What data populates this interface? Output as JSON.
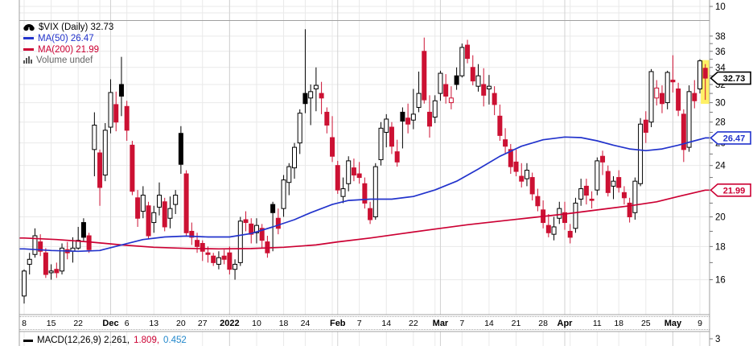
{
  "app": {
    "kind": "stockcharts-daily-chart"
  },
  "colors": {
    "up_outline": "#000000",
    "down_red": "#cc1133",
    "ma50_blue": "#2233cc",
    "ma200_red": "#cc0033",
    "macd_signal_blue": "#2288cc",
    "grid": "#e9e9e9",
    "grid_month": "#d2d2d2",
    "pane_border": "#a0a0a0",
    "highlight_yellow": "#fff066",
    "volume_text_gray": "#666666"
  },
  "legend": {
    "symbol_title": "$VIX (Daily) 32.73",
    "ma50_label": "MA(50) 26.47",
    "ma200_label": "MA(200) 21.99",
    "volume_label": "Volume undef"
  },
  "upper_pane": {
    "axis_label": "10"
  },
  "macd_pane": {
    "legend_black": "MACD(12,26,9) 2.261,",
    "legend_red": "1.809,",
    "legend_blue": "0.452",
    "axis_label": "3"
  },
  "price_tags": [
    {
      "name": "last",
      "value": "32.73",
      "price": 32.73,
      "color": "#000000"
    },
    {
      "name": "ma50",
      "value": "26.47",
      "price": 26.47,
      "color": "#2233cc"
    },
    {
      "name": "ma200",
      "value": "21.99",
      "price": 21.99,
      "color": "#cc0033"
    }
  ],
  "chart_data": {
    "type": "candlestick",
    "title": "$VIX (Daily) 32.73",
    "symbol": "$VIX",
    "timeframe": "Daily",
    "last_close": 32.73,
    "first_candle_date": "2021-11-08",
    "last_candle_date": "2022-05-10",
    "y_axis": {
      "scale": "log",
      "tick_step_labeled": 2,
      "ticks": [
        16,
        18,
        20,
        22,
        24,
        26,
        28,
        30,
        32,
        34,
        36,
        38
      ],
      "ylim": [
        14.2,
        39.5
      ]
    },
    "x_labels": [
      {
        "i": 0,
        "t": "8",
        "bold": false
      },
      {
        "i": 5,
        "t": "15",
        "bold": false
      },
      {
        "i": 10,
        "t": "22",
        "bold": false
      },
      {
        "i": 16,
        "t": "Dec",
        "bold": true
      },
      {
        "i": 19,
        "t": "6",
        "bold": false
      },
      {
        "i": 24,
        "t": "13",
        "bold": false
      },
      {
        "i": 29,
        "t": "20",
        "bold": false
      },
      {
        "i": 33,
        "t": "27",
        "bold": false
      },
      {
        "i": 38,
        "t": "2022",
        "bold": true
      },
      {
        "i": 43,
        "t": "10",
        "bold": false
      },
      {
        "i": 48,
        "t": "18",
        "bold": false
      },
      {
        "i": 52,
        "t": "24",
        "bold": false
      },
      {
        "i": 58,
        "t": "Feb",
        "bold": true
      },
      {
        "i": 62,
        "t": "7",
        "bold": false
      },
      {
        "i": 67,
        "t": "14",
        "bold": false
      },
      {
        "i": 72,
        "t": "22",
        "bold": false
      },
      {
        "i": 77,
        "t": "Mar",
        "bold": true
      },
      {
        "i": 81,
        "t": "7",
        "bold": false
      },
      {
        "i": 86,
        "t": "14",
        "bold": false
      },
      {
        "i": 91,
        "t": "21",
        "bold": false
      },
      {
        "i": 96,
        "t": "28",
        "bold": false
      },
      {
        "i": 100,
        "t": "Apr",
        "bold": true
      },
      {
        "i": 106,
        "t": "11",
        "bold": false
      },
      {
        "i": 110,
        "t": "18",
        "bold": false
      },
      {
        "i": 115,
        "t": "25",
        "bold": false
      },
      {
        "i": 120,
        "t": "May",
        "bold": true
      },
      {
        "i": 125,
        "t": "9",
        "bold": false
      }
    ],
    "week_gridlines": [
      0,
      5,
      10,
      14,
      19,
      24,
      29,
      33,
      38,
      43,
      48,
      52,
      57,
      62,
      67,
      72,
      76,
      81,
      86,
      91,
      96,
      101,
      106,
      110,
      115,
      120,
      125
    ],
    "month_gridlines": [
      16,
      38,
      58,
      77,
      100,
      120
    ],
    "highlight_last_candle": true,
    "candles_ohlc": [
      [
        15.1,
        16.6,
        14.7,
        16.5
      ],
      [
        16.9,
        17.6,
        16.3,
        17.2
      ],
      [
        17.5,
        19.2,
        17.3,
        18.7
      ],
      [
        18.3,
        18.8,
        17.4,
        17.7
      ],
      [
        17.6,
        17.9,
        16.1,
        16.3
      ],
      [
        16.4,
        16.9,
        16.0,
        16.5
      ],
      [
        16.6,
        17.0,
        16.1,
        16.4
      ],
      [
        16.5,
        18.2,
        16.3,
        17.9
      ],
      [
        17.8,
        18.3,
        17.2,
        17.6
      ],
      [
        17.7,
        18.6,
        17.0,
        17.9
      ],
      [
        17.9,
        19.3,
        17.8,
        18.4
      ],
      [
        19.6,
        19.9,
        18.3,
        18.6
      ],
      [
        18.7,
        18.9,
        17.6,
        17.8
      ],
      [
        25.4,
        28.99,
        23.1,
        27.7
      ],
      [
        25.1,
        25.4,
        20.8,
        22.2
      ],
      [
        23.2,
        27.9,
        22.7,
        27.2
      ],
      [
        27.5,
        32.6,
        26.9,
        31.1
      ],
      [
        29.8,
        31.2,
        27.1,
        28.0
      ],
      [
        32.0,
        35.3,
        28.6,
        30.7
      ],
      [
        29.6,
        30.2,
        26.2,
        27.2
      ],
      [
        25.8,
        26.2,
        21.6,
        21.9
      ],
      [
        21.4,
        22.0,
        19.3,
        19.9
      ],
      [
        20.4,
        22.3,
        19.9,
        21.6
      ],
      [
        20.8,
        21.1,
        18.5,
        18.7
      ],
      [
        19.6,
        20.8,
        18.9,
        20.3
      ],
      [
        20.7,
        22.6,
        20.1,
        21.6
      ],
      [
        21.1,
        21.4,
        19.0,
        19.3
      ],
      [
        19.9,
        21.5,
        19.2,
        20.6
      ],
      [
        20.9,
        22.0,
        20.2,
        21.6
      ],
      [
        26.9,
        27.6,
        23.3,
        24.1
      ],
      [
        23.3,
        23.6,
        18.7,
        18.9
      ],
      [
        19.0,
        19.6,
        18.1,
        18.6
      ],
      [
        18.4,
        18.9,
        17.6,
        18.0
      ],
      [
        18.2,
        18.4,
        17.1,
        17.7
      ],
      [
        17.6,
        18.0,
        17.0,
        17.5
      ],
      [
        17.4,
        17.6,
        16.8,
        17.0
      ],
      [
        16.9,
        17.7,
        16.6,
        17.3
      ],
      [
        17.4,
        17.8,
        16.9,
        17.2
      ],
      [
        17.6,
        18.0,
        16.3,
        16.6
      ],
      [
        16.6,
        17.2,
        16.0,
        16.9
      ],
      [
        17.0,
        20.0,
        16.8,
        19.7
      ],
      [
        19.8,
        20.4,
        19.0,
        19.6
      ],
      [
        19.5,
        19.9,
        18.2,
        18.8
      ],
      [
        18.9,
        19.9,
        18.2,
        19.4
      ],
      [
        19.2,
        19.5,
        17.9,
        18.4
      ],
      [
        18.3,
        18.7,
        17.3,
        17.6
      ],
      [
        20.9,
        21.1,
        17.7,
        20.3
      ],
      [
        19.9,
        20.6,
        18.8,
        19.2
      ],
      [
        20.6,
        23.2,
        20.0,
        22.8
      ],
      [
        22.6,
        24.2,
        21.6,
        23.9
      ],
      [
        23.8,
        26.0,
        22.9,
        25.6
      ],
      [
        26.0,
        29.3,
        25.0,
        28.9
      ],
      [
        31.0,
        38.94,
        28.9,
        29.9
      ],
      [
        30.5,
        32.0,
        27.7,
        31.2
      ],
      [
        31.5,
        34.0,
        29.1,
        31.9
      ],
      [
        31.0,
        32.3,
        28.8,
        30.5
      ],
      [
        29.0,
        29.5,
        26.9,
        27.7
      ],
      [
        26.5,
        28.6,
        24.3,
        24.8
      ],
      [
        24.0,
        24.4,
        21.7,
        22.0
      ],
      [
        21.5,
        23.0,
        21.0,
        22.1
      ],
      [
        22.5,
        24.8,
        21.9,
        24.4
      ],
      [
        23.8,
        24.6,
        22.7,
        23.2
      ],
      [
        23.3,
        24.3,
        22.5,
        23.0
      ],
      [
        22.5,
        23.0,
        20.6,
        21.0
      ],
      [
        20.6,
        21.1,
        19.5,
        19.8
      ],
      [
        20.0,
        24.2,
        19.8,
        23.9
      ],
      [
        24.5,
        28.0,
        24.0,
        27.4
      ],
      [
        27.0,
        28.8,
        25.6,
        28.3
      ],
      [
        27.5,
        28.0,
        25.0,
        25.7
      ],
      [
        25.2,
        26.3,
        23.9,
        24.3
      ],
      [
        29.0,
        29.5,
        25.5,
        28.1
      ],
      [
        28.4,
        29.9,
        26.9,
        27.8
      ],
      [
        28.2,
        31.5,
        27.3,
        28.8
      ],
      [
        29.5,
        33.5,
        29.0,
        31.0
      ],
      [
        36.0,
        37.8,
        29.9,
        30.3
      ],
      [
        29.0,
        30.8,
        26.5,
        27.6
      ],
      [
        28.5,
        30.8,
        27.9,
        30.2
      ],
      [
        31.0,
        33.6,
        30.2,
        33.3
      ],
      [
        32.0,
        33.2,
        29.9,
        30.7
      ],
      [
        30.0,
        31.8,
        29.3,
        30.5
      ],
      [
        33.0,
        34.0,
        31.4,
        32.0
      ],
      [
        33.0,
        37.0,
        32.8,
        36.5
      ],
      [
        36.8,
        37.5,
        34.5,
        35.1
      ],
      [
        34.0,
        35.5,
        31.9,
        32.4
      ],
      [
        31.8,
        34.4,
        31.2,
        33.0
      ],
      [
        32.0,
        33.9,
        29.6,
        30.8
      ],
      [
        31.5,
        33.1,
        29.8,
        31.8
      ],
      [
        31.0,
        31.8,
        28.7,
        29.8
      ],
      [
        28.6,
        29.8,
        26.2,
        26.7
      ],
      [
        26.3,
        27.4,
        25.0,
        25.7
      ],
      [
        25.4,
        25.9,
        23.3,
        23.9
      ],
      [
        24.3,
        25.4,
        23.1,
        23.5
      ],
      [
        23.1,
        24.2,
        22.2,
        22.7
      ],
      [
        22.9,
        24.2,
        22.3,
        23.6
      ],
      [
        23.0,
        23.4,
        21.2,
        21.7
      ],
      [
        21.5,
        22.1,
        20.4,
        20.8
      ],
      [
        20.5,
        21.2,
        19.2,
        19.6
      ],
      [
        19.4,
        20.2,
        18.6,
        18.9
      ],
      [
        18.8,
        20.0,
        18.4,
        19.3
      ],
      [
        19.9,
        21.1,
        19.5,
        20.6
      ],
      [
        20.3,
        21.1,
        19.1,
        19.6
      ],
      [
        19.0,
        19.5,
        18.2,
        18.6
      ],
      [
        19.2,
        21.4,
        18.9,
        21.0
      ],
      [
        21.3,
        22.9,
        20.8,
        22.1
      ],
      [
        22.3,
        22.9,
        20.9,
        21.6
      ],
      [
        21.3,
        21.9,
        20.6,
        21.2
      ],
      [
        22.0,
        24.7,
        21.6,
        24.4
      ],
      [
        24.8,
        25.3,
        23.2,
        24.3
      ],
      [
        23.5,
        24.0,
        21.5,
        21.8
      ],
      [
        22.3,
        23.1,
        21.3,
        22.7
      ],
      [
        23.0,
        23.6,
        21.8,
        22.2
      ],
      [
        21.8,
        22.3,
        20.9,
        21.4
      ],
      [
        21.0,
        21.4,
        19.6,
        20.0
      ],
      [
        20.3,
        23.0,
        19.8,
        22.7
      ],
      [
        22.5,
        28.4,
        22.3,
        27.8
      ],
      [
        28.2,
        29.1,
        26.0,
        27.0
      ],
      [
        28.0,
        33.8,
        27.5,
        33.5
      ],
      [
        30.5,
        32.5,
        29.7,
        31.6
      ],
      [
        31.0,
        31.9,
        28.9,
        29.9
      ],
      [
        30.0,
        33.6,
        29.3,
        33.4
      ],
      [
        32.5,
        35.5,
        31.1,
        32.3
      ],
      [
        31.5,
        32.2,
        28.6,
        29.2
      ],
      [
        28.8,
        29.3,
        24.3,
        25.4
      ],
      [
        25.6,
        31.9,
        25.2,
        31.2
      ],
      [
        31.0,
        32.5,
        29.4,
        30.2
      ],
      [
        31.5,
        35.0,
        31.0,
        34.8
      ],
      [
        33.9,
        34.4,
        30.3,
        32.73
      ]
    ],
    "ma50": [
      [
        0,
        17.85
      ],
      [
        5,
        17.75
      ],
      [
        10,
        17.7
      ],
      [
        14,
        17.75
      ],
      [
        18,
        18.1
      ],
      [
        22,
        18.45
      ],
      [
        26,
        18.62
      ],
      [
        30,
        18.68
      ],
      [
        34,
        18.62
      ],
      [
        38,
        18.62
      ],
      [
        42,
        18.85
      ],
      [
        46,
        19.3
      ],
      [
        50,
        19.8
      ],
      [
        53,
        20.3
      ],
      [
        57,
        20.9
      ],
      [
        60,
        21.2
      ],
      [
        64,
        21.3
      ],
      [
        68,
        21.3
      ],
      [
        72,
        21.5
      ],
      [
        76,
        22.0
      ],
      [
        80,
        22.7
      ],
      [
        84,
        23.7
      ],
      [
        88,
        24.8
      ],
      [
        92,
        25.7
      ],
      [
        96,
        26.3
      ],
      [
        100,
        26.55
      ],
      [
        103,
        26.5
      ],
      [
        106,
        26.2
      ],
      [
        109,
        25.8
      ],
      [
        112,
        25.45
      ],
      [
        115,
        25.3
      ],
      [
        118,
        25.45
      ],
      [
        121,
        25.8
      ],
      [
        124,
        26.2
      ],
      [
        126,
        26.47
      ]
    ],
    "ma200": [
      [
        0,
        18.55
      ],
      [
        6,
        18.45
      ],
      [
        12,
        18.3
      ],
      [
        18,
        18.1
      ],
      [
        24,
        17.95
      ],
      [
        30,
        17.88
      ],
      [
        36,
        17.85
      ],
      [
        42,
        17.87
      ],
      [
        48,
        17.95
      ],
      [
        54,
        18.1
      ],
      [
        58,
        18.3
      ],
      [
        64,
        18.55
      ],
      [
        70,
        18.85
      ],
      [
        76,
        19.15
      ],
      [
        82,
        19.45
      ],
      [
        88,
        19.7
      ],
      [
        94,
        19.95
      ],
      [
        100,
        20.2
      ],
      [
        106,
        20.5
      ],
      [
        112,
        20.8
      ],
      [
        117,
        21.1
      ],
      [
        121,
        21.5
      ],
      [
        126,
        21.99
      ]
    ]
  }
}
